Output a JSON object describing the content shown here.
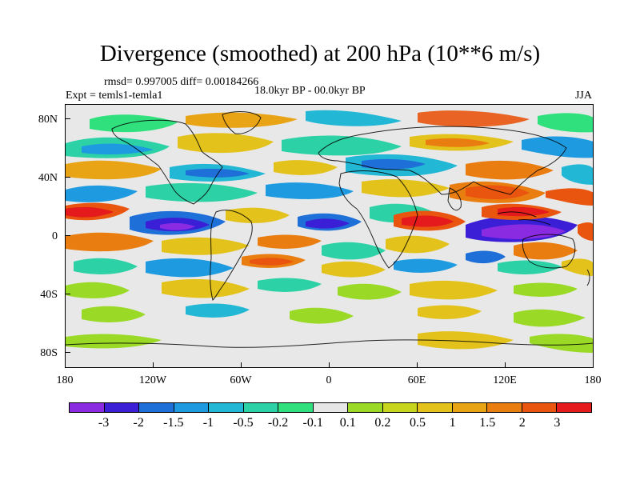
{
  "title": "Divergence (smoothed) at 200 hPa (10**6 m/s)",
  "stats": "rmsd= 0.997005 diff= 0.00184266",
  "experiment": "Expt = temls1-temla1",
  "period": "18.0kyr BP - 00.0kyr BP",
  "season": "JJA",
  "lat_labels": [
    "80N",
    "40N",
    "0",
    "40S",
    "80S"
  ],
  "lon_labels": [
    "180",
    "120W",
    "60W",
    "0",
    "60E",
    "120E",
    "180"
  ],
  "colorbar": {
    "colors": [
      "#8a2be2",
      "#3a1fd6",
      "#1f6fd8",
      "#1e9be0",
      "#22b7d4",
      "#2cd1a6",
      "#2fe07c",
      "#e6e6e6",
      "#9ad926",
      "#c8d51f",
      "#e2c21b",
      "#e8a415",
      "#ea7d10",
      "#e9550e",
      "#e41a1c"
    ],
    "labels": [
      "-3",
      "-2",
      "-1.5",
      "-1",
      "-0.5",
      "-0.2",
      "-0.1",
      "0.1",
      "0.2",
      "0.5",
      "1",
      "1.5",
      "2",
      "3"
    ]
  }
}
